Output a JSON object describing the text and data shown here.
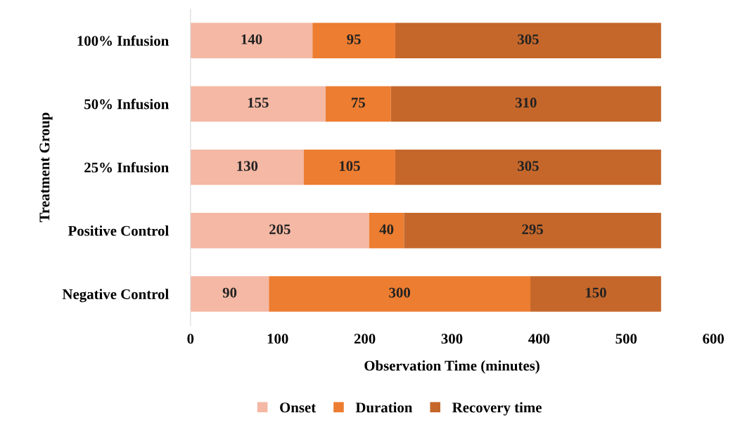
{
  "chart_data": {
    "type": "bar",
    "orientation": "horizontal",
    "stacked": true,
    "data_labels": true,
    "grid": false,
    "legend": "bottom",
    "xlabel": "Observation Time (minutes)",
    "ylabel": "Treatment Group",
    "categories": [
      "100% Infusion",
      "50% Infusion",
      "25% Infusion",
      "Positive Control",
      "Negative Control"
    ],
    "xlim": [
      0,
      600
    ],
    "xticks": [
      0,
      100,
      200,
      300,
      400,
      500,
      600
    ],
    "series": [
      {
        "name": "Onset",
        "color": "#f4b8a4",
        "values": [
          140,
          155,
          130,
          205,
          90
        ]
      },
      {
        "name": "Duration",
        "color": "#ed7d31",
        "values": [
          95,
          75,
          105,
          40,
          300
        ]
      },
      {
        "name": "Recovery time",
        "color": "#c5672b",
        "values": [
          305,
          310,
          305,
          295,
          150
        ]
      }
    ]
  }
}
